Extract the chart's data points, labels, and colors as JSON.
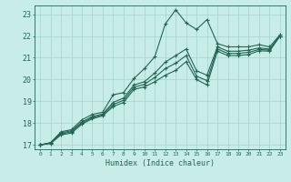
{
  "xlabel": "Humidex (Indice chaleur)",
  "background_color": "#c8ede8",
  "grid_color": "#a8d8d0",
  "line_color": "#226655",
  "xlim": [
    -0.5,
    23.5
  ],
  "ylim": [
    16.8,
    23.4
  ],
  "xticks": [
    0,
    1,
    2,
    3,
    4,
    5,
    6,
    7,
    8,
    9,
    10,
    11,
    12,
    13,
    14,
    15,
    16,
    17,
    18,
    19,
    20,
    21,
    22,
    23
  ],
  "yticks": [
    17,
    18,
    19,
    20,
    21,
    22,
    23
  ],
  "lines": [
    {
      "x": [
        0,
        1,
        2,
        3,
        4,
        5,
        6,
        7,
        8,
        9,
        10,
        11,
        12,
        13,
        14,
        15,
        16,
        17,
        18,
        19,
        20,
        21,
        22,
        23
      ],
      "y": [
        17.0,
        17.1,
        17.6,
        17.7,
        18.15,
        18.4,
        18.5,
        19.3,
        19.4,
        20.05,
        20.5,
        21.05,
        22.55,
        23.2,
        22.6,
        22.3,
        22.75,
        21.65,
        21.5,
        21.5,
        21.5,
        21.6,
        21.5,
        22.05
      ]
    },
    {
      "x": [
        0,
        1,
        2,
        3,
        4,
        5,
        6,
        7,
        8,
        9,
        10,
        11,
        12,
        13,
        14,
        15,
        16,
        17,
        18,
        19,
        20,
        21,
        22,
        23
      ],
      "y": [
        17.0,
        17.1,
        17.55,
        17.65,
        18.05,
        18.3,
        18.42,
        18.95,
        19.15,
        19.75,
        19.9,
        20.3,
        20.8,
        21.1,
        21.4,
        20.4,
        20.2,
        21.5,
        21.3,
        21.3,
        21.35,
        21.45,
        21.4,
        22.0
      ]
    },
    {
      "x": [
        0,
        1,
        2,
        3,
        4,
        5,
        6,
        7,
        8,
        9,
        10,
        11,
        12,
        13,
        14,
        15,
        16,
        17,
        18,
        19,
        20,
        21,
        22,
        23
      ],
      "y": [
        17.0,
        17.08,
        17.5,
        17.6,
        18.0,
        18.25,
        18.38,
        18.85,
        19.05,
        19.65,
        19.78,
        20.1,
        20.5,
        20.75,
        21.1,
        20.15,
        19.95,
        21.4,
        21.2,
        21.2,
        21.25,
        21.38,
        21.35,
        22.0
      ]
    },
    {
      "x": [
        0,
        1,
        2,
        3,
        4,
        5,
        6,
        7,
        8,
        9,
        10,
        11,
        12,
        13,
        14,
        15,
        16,
        17,
        18,
        19,
        20,
        21,
        22,
        23
      ],
      "y": [
        17.0,
        17.06,
        17.46,
        17.54,
        17.95,
        18.2,
        18.33,
        18.76,
        18.95,
        19.55,
        19.66,
        19.9,
        20.2,
        20.42,
        20.82,
        20.0,
        19.75,
        21.3,
        21.1,
        21.1,
        21.15,
        21.32,
        21.3,
        22.0
      ]
    }
  ]
}
